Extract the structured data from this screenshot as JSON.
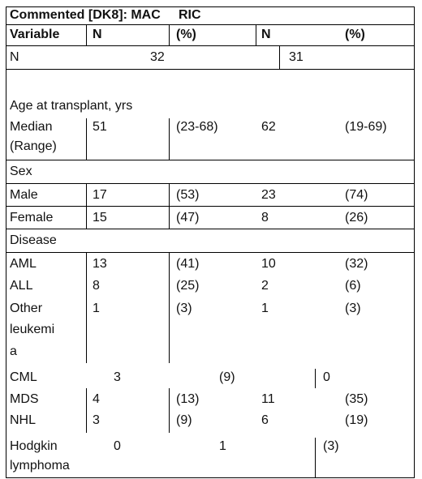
{
  "comment_label": "Commented [DK8]: MAC     RIC",
  "header": {
    "variable": "Variable",
    "n1": "N",
    "pct1": "(%)",
    "n2": "N",
    "pct2": "(%)"
  },
  "n_row": {
    "label": "N",
    "mac": "32",
    "ric": "31"
  },
  "age": {
    "heading": "Age at transplant, yrs",
    "label_line1": "Median",
    "label_line2": "(Range)",
    "mac_n": "51",
    "mac_pct": "(23-68)",
    "ric_n": "62",
    "ric_pct": "(19-69)"
  },
  "sex": {
    "heading": "Sex",
    "rows": [
      {
        "label": "Male",
        "mac_n": "17",
        "mac_pct": "(53)",
        "ric_n": "23",
        "ric_pct": "(74)"
      },
      {
        "label": "Female",
        "mac_n": "15",
        "mac_pct": "(47)",
        "ric_n": "8",
        "ric_pct": "(26)"
      }
    ]
  },
  "disease": {
    "heading": "Disease",
    "aml": {
      "label": "AML",
      "mac_n": "13",
      "mac_pct": "(41)",
      "ric_n": "10",
      "ric_pct": "(32)"
    },
    "all": {
      "label": "ALL",
      "mac_n": "8",
      "mac_pct": "(25)",
      "ric_n": "2",
      "ric_pct": "(6)"
    },
    "other": {
      "label_line1": "Other",
      "label_line2": "leukemi",
      "label_line3": "a",
      "mac_n": "1",
      "mac_pct": "(3)",
      "ric_n": "1",
      "ric_pct": "(3)"
    },
    "cml": {
      "label": "CML",
      "mac_n": "3",
      "mac_pct": "(9)",
      "ric_n": "0"
    },
    "mds": {
      "label": "MDS",
      "mac_n": "4",
      "mac_pct": "(13)",
      "ric_n": "11",
      "ric_pct": "(35)"
    },
    "nhl": {
      "label": "NHL",
      "mac_n": "3",
      "mac_pct": "(9)",
      "ric_n": "6",
      "ric_pct": "(19)"
    },
    "hodgkin": {
      "label_line1": "Hodgkin",
      "label_line2": "lymphoma",
      "mac_n": "0",
      "mac_pct": "1",
      "ric_n": "(3)"
    }
  }
}
